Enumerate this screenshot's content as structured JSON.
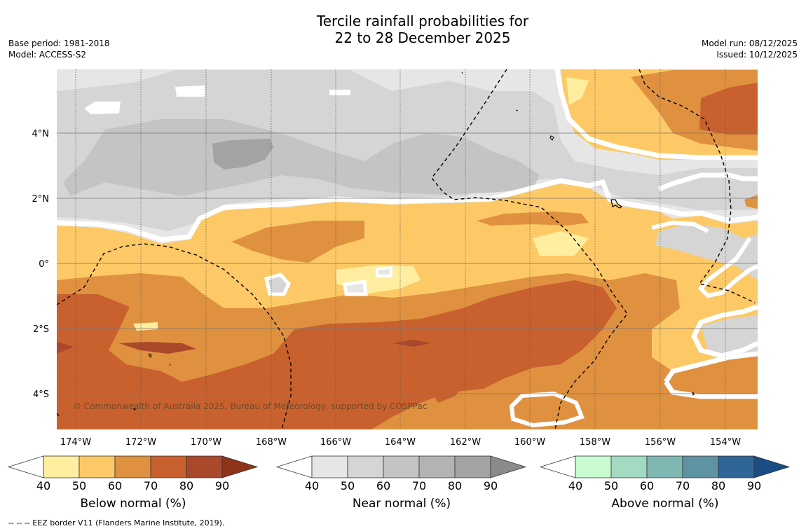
{
  "title": {
    "line1": "Tercile rainfall probabilities for",
    "line2": "22 to 28 December 2025"
  },
  "meta": {
    "base_period": "Base period: 1981-2018",
    "model": "Model: ACCESS-S2",
    "model_run": "Model run: 08/12/2025",
    "issued": "Issued: 10/12/2025"
  },
  "map": {
    "copyright": "© Commonwealth of Australia 2025, Bureau of Meteorology, supported by COSPPac",
    "lat_labels": [
      "4°N",
      "2°N",
      "0°",
      "2°S",
      "4°S"
    ],
    "lon_labels": [
      "174°W",
      "172°W",
      "170°W",
      "168°W",
      "166°W",
      "164°W",
      "162°W",
      "160°W",
      "158°W",
      "156°W",
      "154°W"
    ]
  },
  "legends": {
    "below": {
      "title": "Below normal (%)",
      "ticks": [
        "40",
        "50",
        "60",
        "70",
        "80",
        "90"
      ],
      "colors": [
        "#ffffff",
        "#ffeea0",
        "#fdc966",
        "#df9140",
        "#c9612e",
        "#a9482a",
        "#8f3418"
      ]
    },
    "near": {
      "title": "Near normal (%)",
      "ticks": [
        "40",
        "50",
        "60",
        "70",
        "80",
        "90"
      ],
      "colors": [
        "#ffffff",
        "#e6e6e6",
        "#d5d5d5",
        "#c4c4c4",
        "#b3b3b3",
        "#a3a3a3",
        "#8a8a8a"
      ]
    },
    "above": {
      "title": "Above normal (%)",
      "ticks": [
        "40",
        "50",
        "60",
        "70",
        "80",
        "90"
      ],
      "colors": [
        "#ffffff",
        "#c9fbd0",
        "#a2dbc2",
        "#80b7b3",
        "#5f93a3",
        "#306597",
        "#1a4d84"
      ]
    }
  },
  "footnote": "--  --  -- EEZ border V11 (Flanders Marine Institute, 2019)."
}
